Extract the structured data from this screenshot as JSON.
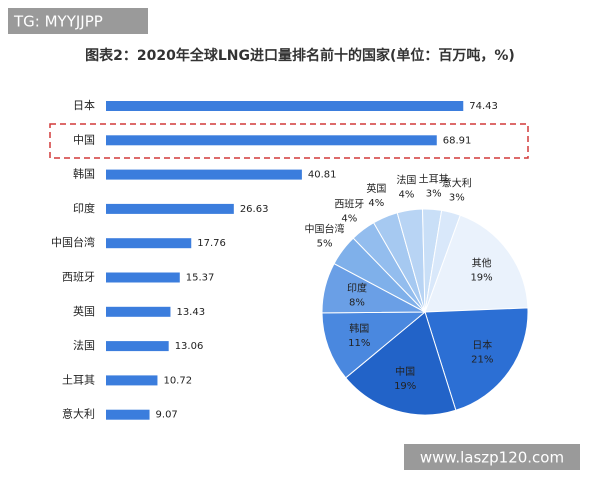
{
  "watermark": "TG: MYYJJPP",
  "footer": "www.laszp120.com",
  "chart_data": [
    {
      "type": "bar",
      "orientation": "horizontal",
      "title": "图表2：2020年全球LNG进口量排名前十的国家(单位：百万吨，%)",
      "categories": [
        "日本",
        "中国",
        "韩国",
        "印度",
        "中国台湾",
        "西班牙",
        "英国",
        "法国",
        "土耳其",
        "意大利"
      ],
      "values": [
        74.43,
        68.91,
        40.81,
        26.63,
        17.76,
        15.37,
        13.43,
        13.06,
        10.72,
        9.07
      ],
      "color": "#3b7ddd"
    },
    {
      "type": "pie",
      "categories": [
        "其他",
        "日本",
        "中国",
        "韩国",
        "印度",
        "中国台湾",
        "西班牙",
        "英国",
        "法国",
        "土耳其",
        "意大利"
      ],
      "values": [
        19,
        21,
        19,
        11,
        8,
        5,
        4,
        4,
        4,
        3,
        3
      ],
      "value_labels": [
        "19%",
        "21%",
        "19%",
        "11%",
        "8%",
        "5%",
        "4%",
        "4%",
        "4%",
        "3%",
        "3%"
      ],
      "colors": [
        "#eaf2fc",
        "#2c6fd4",
        "#2263c8",
        "#4a88df",
        "#6a9fe6",
        "#7fb0ea",
        "#93bdee",
        "#a6c9f1",
        "#b8d4f4",
        "#c9dff7",
        "#d9e8fa"
      ]
    }
  ]
}
